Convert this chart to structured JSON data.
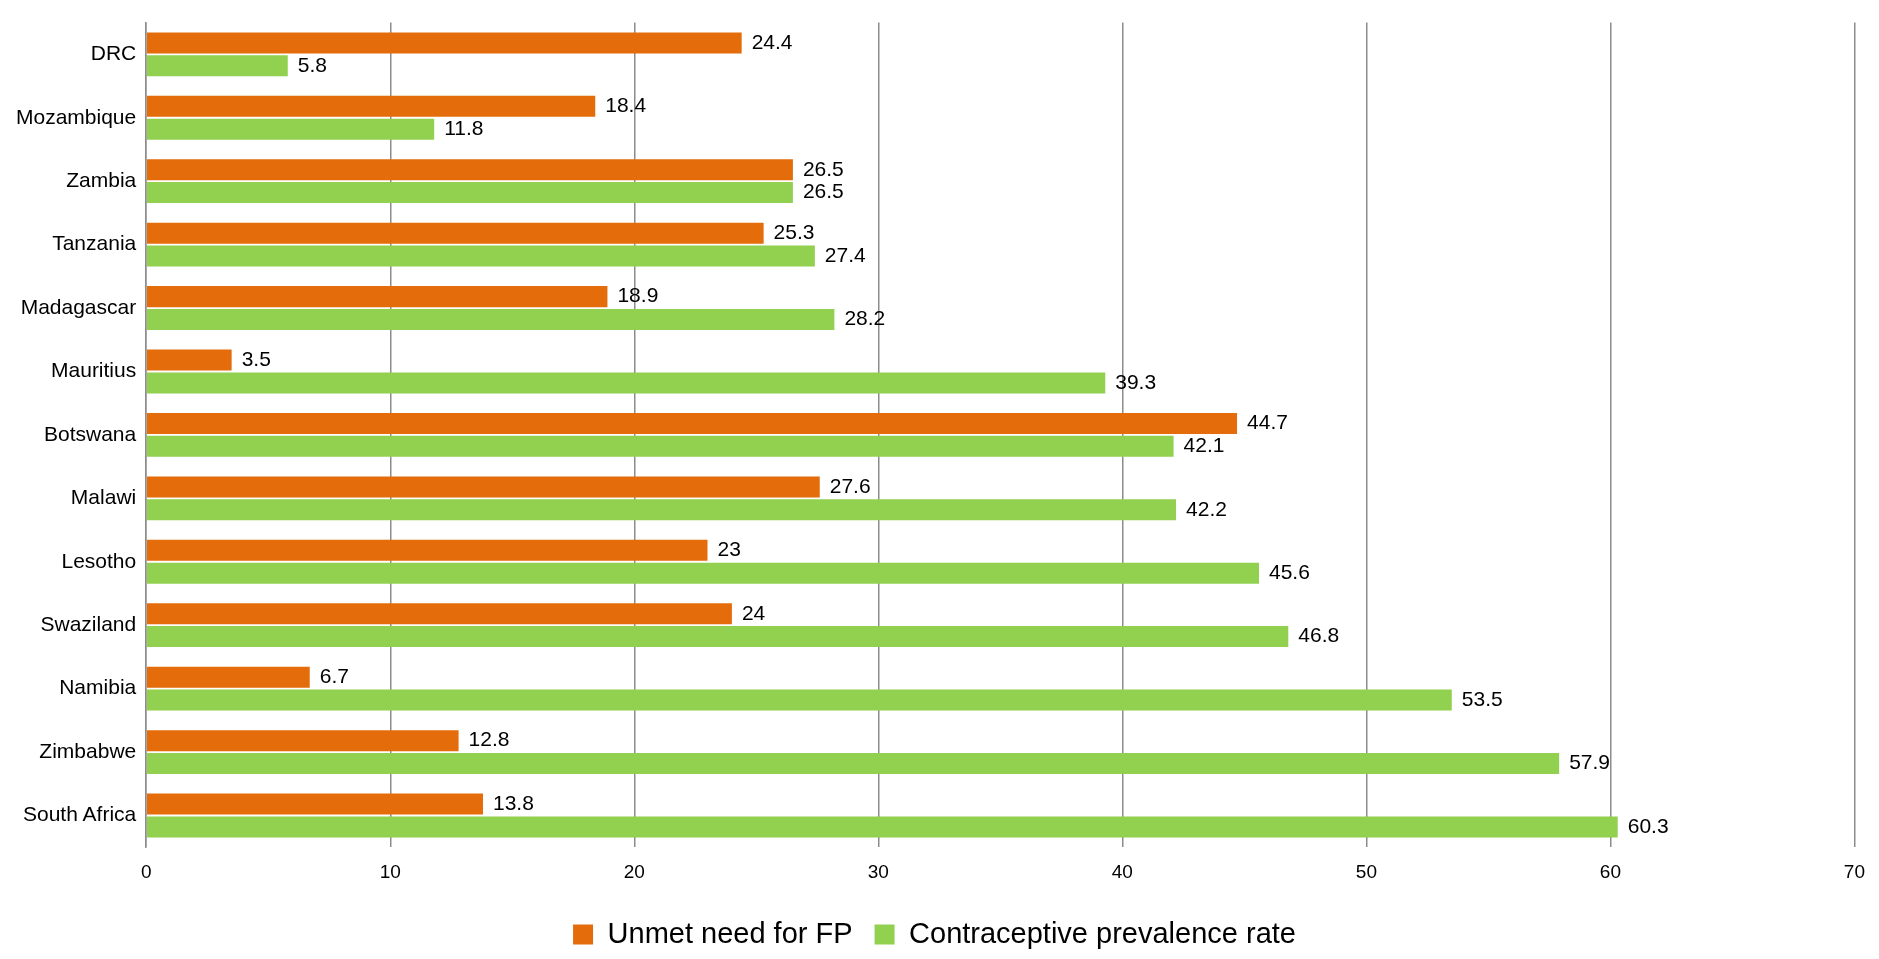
{
  "chart_data": {
    "type": "bar",
    "orientation": "horizontal",
    "categories": [
      "DRC",
      "Mozambique",
      "Zambia",
      "Tanzania",
      "Madagascar",
      "Mauritius",
      "Botswana",
      "Malawi",
      "Lesotho",
      "Swaziland",
      "Namibia",
      "Zimbabwe",
      "South Africa"
    ],
    "series": [
      {
        "name": "Unmet need for FP",
        "color": "#e46c0a",
        "values": [
          24.4,
          18.4,
          26.5,
          25.3,
          18.9,
          3.5,
          44.7,
          27.6,
          23,
          24,
          6.7,
          12.8,
          13.8
        ]
      },
      {
        "name": "Contraceptive prevalence rate",
        "color": "#92d050",
        "values": [
          5.8,
          11.8,
          26.5,
          27.4,
          28.2,
          39.3,
          42.1,
          42.2,
          45.6,
          46.8,
          53.5,
          57.9,
          60.3
        ]
      }
    ],
    "xlim": [
      0,
      70
    ],
    "xticks": [
      0,
      10,
      20,
      30,
      40,
      50,
      60,
      70
    ],
    "grid": "x",
    "legend": "bottom",
    "data_labels": true
  }
}
